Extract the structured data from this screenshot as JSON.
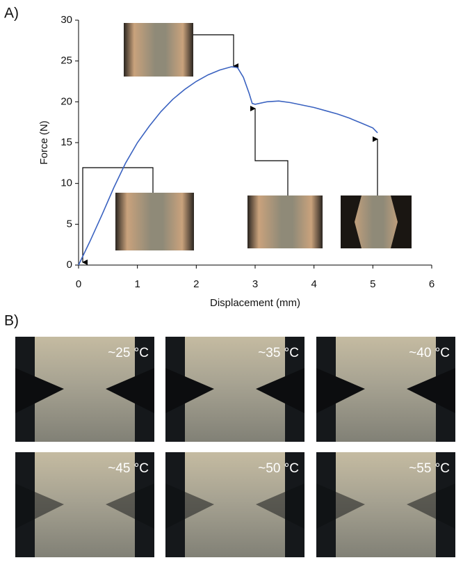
{
  "panel_labels": [
    "A)",
    "B)"
  ],
  "photo_labels": [
    "~25 °C",
    "~35 °C",
    "~40 °C",
    "~45 °C",
    "~50 °C",
    "~55 °C"
  ],
  "chart_data": {
    "type": "line",
    "xlabel": "Displacement (mm)",
    "ylabel": "Force (N)",
    "xlim": [
      0,
      6
    ],
    "ylim": [
      0,
      30
    ],
    "xticks": [
      0,
      1,
      2,
      3,
      4,
      5,
      6
    ],
    "yticks": [
      0,
      5,
      10,
      15,
      20,
      25,
      30
    ],
    "series": [
      {
        "color": "#3a62c0",
        "x": [
          0,
          0.2,
          0.4,
          0.6,
          0.8,
          1.0,
          1.2,
          1.4,
          1.6,
          1.8,
          2.0,
          2.2,
          2.4,
          2.6,
          2.7,
          2.8,
          2.9,
          2.95,
          3.0,
          3.2,
          3.4,
          3.6,
          3.8,
          4.0,
          4.2,
          4.4,
          4.6,
          4.8,
          5.0,
          5.08
        ],
        "values": [
          0,
          3,
          6.2,
          9.5,
          12.5,
          15,
          17,
          18.8,
          20.3,
          21.5,
          22.5,
          23.3,
          23.9,
          24.3,
          24.2,
          23,
          21,
          19.8,
          19.7,
          20,
          20.1,
          19.9,
          19.6,
          19.3,
          18.9,
          18.5,
          18,
          17.4,
          16.8,
          16.2
        ]
      }
    ]
  }
}
